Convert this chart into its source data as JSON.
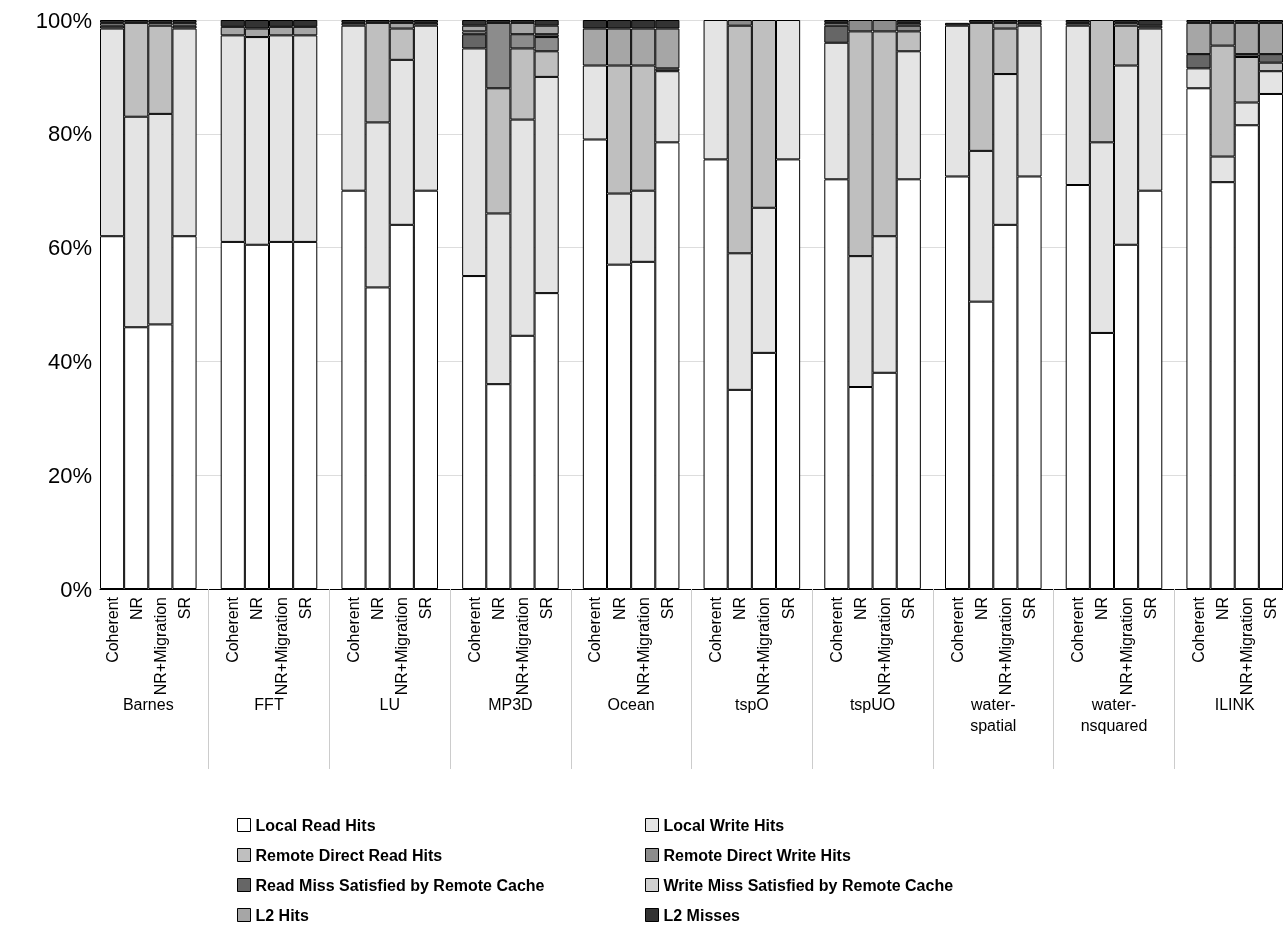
{
  "chart_data": {
    "type": "bar",
    "stacked": true,
    "categories": [
      "Coherent",
      "NR",
      "NR+Migration",
      "SR",
      "Coherent",
      "NR",
      "NR+Migration",
      "SR",
      "Coherent",
      "NR",
      "NR+Migration",
      "SR",
      "Coherent",
      "NR",
      "NR+Migration",
      "SR",
      "Coherent",
      "NR",
      "NR+Migration",
      "SR",
      "Coherent",
      "NR",
      "NR+Migration",
      "SR",
      "Coherent",
      "NR",
      "NR+Migration",
      "SR",
      "Coherent",
      "NR",
      "NR+Migration",
      "SR",
      "Coherent",
      "NR",
      "NR+Migration",
      "SR",
      "Coherent",
      "NR",
      "NR+Migration",
      "SR"
    ],
    "annotations": [
      "Barnes",
      "FFT",
      "LU",
      "MP3D",
      "Ocean",
      "tspO",
      "tspUO",
      "water-spatial",
      "water-nsquared",
      "ILINK"
    ],
    "series": [
      {
        "name": "Local Read Hits",
        "color": "#ffffff",
        "values": [
          62,
          46,
          46.5,
          62,
          61,
          60.5,
          61,
          61,
          70,
          53,
          64,
          70,
          55,
          36,
          44.5,
          52,
          79,
          57,
          57.5,
          78.5,
          75.5,
          35,
          41.5,
          75.5,
          72,
          35.5,
          38,
          72,
          72.5,
          50.5,
          64,
          72.5,
          71,
          45,
          60.5,
          70,
          88,
          71.5,
          81.5,
          87
        ]
      },
      {
        "name": "Local Write Hits",
        "color": "#e4e4e4",
        "values": [
          36.5,
          37,
          37,
          36.5,
          36.3,
          36.5,
          36.3,
          36.3,
          29,
          29,
          29,
          29,
          40,
          30,
          38,
          38,
          13,
          12.5,
          12.5,
          12.5,
          24.5,
          24,
          25.5,
          24.5,
          24,
          23,
          24,
          22.5,
          26.5,
          26.5,
          26.5,
          26.5,
          28,
          33.5,
          31.5,
          28.5,
          3.5,
          4.5,
          4,
          4
        ]
      },
      {
        "name": "Remote Direct Read Hits",
        "color": "#bfbfbf",
        "values": [
          0,
          16.5,
          15.5,
          0,
          0,
          0,
          0,
          0,
          0,
          17.5,
          5.5,
          0,
          0,
          22,
          12.5,
          4.5,
          0,
          22.5,
          22,
          0,
          0,
          40,
          33,
          0,
          0,
          39.5,
          36,
          3.5,
          0,
          22.5,
          8,
          0,
          0,
          21.5,
          7,
          0,
          0,
          19.5,
          8,
          1.5
        ]
      },
      {
        "name": "Remote Direct Write Hits",
        "color": "#8c8c8c",
        "values": [
          0,
          0,
          0,
          0,
          0,
          0,
          0,
          0,
          0,
          0,
          0,
          0,
          0,
          11.5,
          2.5,
          2.5,
          0,
          0,
          0,
          0,
          0,
          1,
          0,
          0,
          0,
          2,
          2,
          1,
          0,
          0,
          0,
          0,
          0,
          0,
          0,
          0,
          0,
          0,
          0,
          0
        ]
      },
      {
        "name": "Read Miss Satisfied by Remote Cache",
        "color": "#666666",
        "values": [
          0.5,
          0,
          0,
          0.5,
          0,
          0,
          0,
          0,
          0.5,
          0,
          0,
          0.5,
          2.5,
          0,
          0,
          0.5,
          0,
          0,
          0,
          0.5,
          0,
          0,
          0,
          0,
          3,
          0,
          0,
          0.5,
          0,
          0,
          0,
          0.5,
          0.5,
          0,
          0,
          0.5,
          2.5,
          0,
          0.5,
          1.5
        ]
      },
      {
        "name": "Write Miss Satisfied by Remote Cache",
        "color": "#d0d0d0",
        "values": [
          0,
          0,
          0,
          0,
          0,
          0,
          0,
          0,
          0,
          0,
          0,
          0,
          0.5,
          0,
          0,
          0,
          0,
          0,
          0,
          0,
          0,
          0,
          0,
          0,
          0,
          0,
          0,
          0,
          0,
          0,
          0,
          0,
          0,
          0,
          0,
          0,
          0,
          0,
          0,
          0
        ]
      },
      {
        "name": "L2 Hits",
        "color": "#a6a6a6",
        "values": [
          0.5,
          0,
          0.5,
          0.5,
          1.5,
          1.5,
          1.5,
          1.5,
          0,
          0,
          1,
          0,
          1,
          0,
          2,
          1.5,
          6.5,
          6.5,
          6.5,
          7,
          0,
          0,
          0,
          0,
          0.5,
          0,
          0,
          0,
          0,
          0,
          1,
          0,
          0,
          0,
          0.5,
          0,
          5.5,
          4,
          5.5,
          5.5
        ]
      },
      {
        "name": "L2 Misses",
        "color": "#333333",
        "values": [
          0.5,
          0.5,
          0.5,
          0.5,
          1.2,
          1.5,
          1.2,
          1.2,
          0.5,
          0.5,
          0.5,
          0.5,
          1,
          0.5,
          0.5,
          1,
          1.5,
          1.5,
          1.5,
          1.5,
          0,
          0,
          0,
          0,
          0.5,
          0,
          0,
          0.5,
          0.5,
          0.5,
          0.5,
          0.5,
          0.5,
          0,
          0.5,
          1,
          0.5,
          0.5,
          0.5,
          0.5
        ]
      }
    ],
    "ylim": [
      0,
      100
    ],
    "yticks": [
      {
        "value": 0,
        "label": "0%"
      },
      {
        "value": 20,
        "label": "20%"
      },
      {
        "value": 40,
        "label": "40%"
      },
      {
        "value": 60,
        "label": "60%"
      },
      {
        "value": 80,
        "label": "80%"
      },
      {
        "value": 100,
        "label": "100%"
      }
    ],
    "grid": "y",
    "legend": "bottom"
  }
}
